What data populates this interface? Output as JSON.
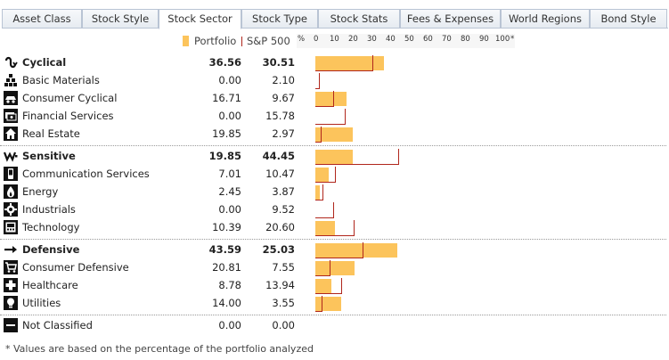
{
  "tabs": [
    {
      "label": "Asset Class"
    },
    {
      "label": "Stock Style"
    },
    {
      "label": "Stock Sector",
      "active": true
    },
    {
      "label": "Stock Type"
    },
    {
      "label": "Stock Stats"
    },
    {
      "label": "Fees & Expenses"
    },
    {
      "label": "World Regions"
    },
    {
      "label": "Bond Style"
    }
  ],
  "legend": {
    "portfolio_label": "Portfolio",
    "benchmark_label": "S&P 500",
    "portfolio_color": "#fcc45c",
    "benchmark_color": "#b0261c"
  },
  "scale": {
    "unit": "%",
    "ticks": [
      "0",
      "10",
      "20",
      "30",
      "40",
      "50",
      "60",
      "70",
      "80",
      "90",
      "100"
    ],
    "asterisk": "*",
    "max": 100
  },
  "rows": [
    {
      "name": "Cyclical",
      "portfolio": "36.56",
      "benchmark": "30.51",
      "group": true,
      "icon": "cyclical-icon"
    },
    {
      "name": "Basic Materials",
      "portfolio": "0.00",
      "benchmark": "2.10",
      "icon": "basic-materials-icon"
    },
    {
      "name": "Consumer Cyclical",
      "portfolio": "16.71",
      "benchmark": "9.67",
      "icon": "consumer-cyclical-icon"
    },
    {
      "name": "Financial Services",
      "portfolio": "0.00",
      "benchmark": "15.78",
      "icon": "financial-services-icon"
    },
    {
      "name": "Real Estate",
      "portfolio": "19.85",
      "benchmark": "2.97",
      "icon": "real-estate-icon"
    },
    {
      "name": "Sensitive",
      "portfolio": "19.85",
      "benchmark": "44.45",
      "group": true,
      "icon": "sensitive-icon"
    },
    {
      "name": "Communication Services",
      "portfolio": "7.01",
      "benchmark": "10.47",
      "icon": "communication-services-icon"
    },
    {
      "name": "Energy",
      "portfolio": "2.45",
      "benchmark": "3.87",
      "icon": "energy-icon"
    },
    {
      "name": "Industrials",
      "portfolio": "0.00",
      "benchmark": "9.52",
      "icon": "industrials-icon"
    },
    {
      "name": "Technology",
      "portfolio": "10.39",
      "benchmark": "20.60",
      "icon": "technology-icon"
    },
    {
      "name": "Defensive",
      "portfolio": "43.59",
      "benchmark": "25.03",
      "group": true,
      "icon": "defensive-icon"
    },
    {
      "name": "Consumer Defensive",
      "portfolio": "20.81",
      "benchmark": "7.55",
      "icon": "consumer-defensive-icon"
    },
    {
      "name": "Healthcare",
      "portfolio": "8.78",
      "benchmark": "13.94",
      "icon": "healthcare-icon"
    },
    {
      "name": "Utilities",
      "portfolio": "14.00",
      "benchmark": "3.55",
      "icon": "utilities-icon"
    },
    {
      "name": "Not Classified",
      "portfolio": "0.00",
      "benchmark": "0.00",
      "icon": "not-classified-icon"
    }
  ],
  "footnote": "* Values are based on the percentage of the portfolio analyzed"
}
